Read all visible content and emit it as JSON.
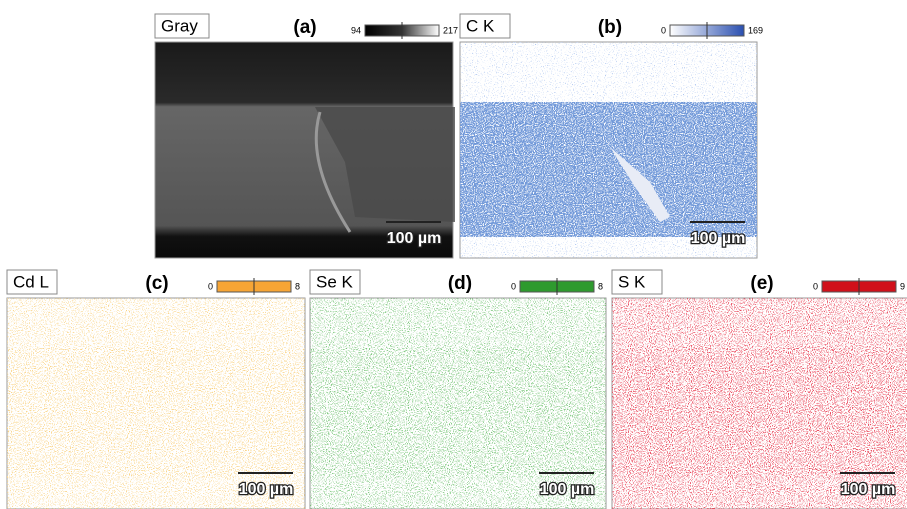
{
  "panels": [
    {
      "element": "Gray",
      "letter": "(a)",
      "scale_min": 94,
      "scale_max": 217,
      "scale_bar": "100 µm"
    },
    {
      "element": "C K",
      "letter": "(b)",
      "scale_min": 0,
      "scale_max": 169,
      "scale_bar": "100 µm"
    },
    {
      "element": "Cd L",
      "letter": "(c)",
      "scale_min": 0,
      "scale_max": 8,
      "scale_bar": "100 µm"
    },
    {
      "element": "Se K",
      "letter": "(d)",
      "scale_min": 0,
      "scale_max": 8,
      "scale_bar": "100 µm"
    },
    {
      "element": "S K",
      "letter": "(e)",
      "scale_min": 0,
      "scale_max": 9,
      "scale_bar": "100 µm"
    }
  ]
}
